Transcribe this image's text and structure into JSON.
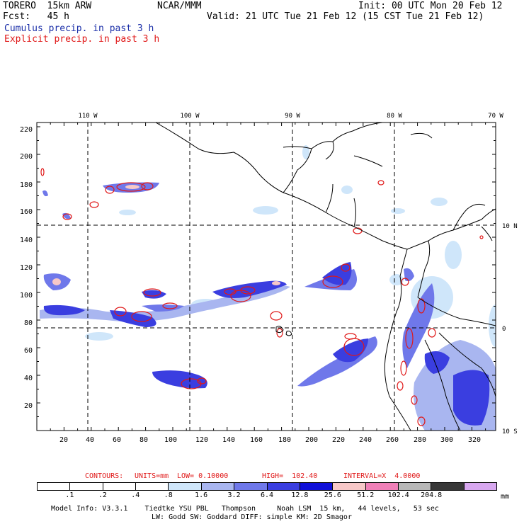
{
  "header": {
    "model": "TORERO  15km ARW",
    "center": "NCAR/MMM",
    "init": "Init: 00 UTC Mon 20 Feb 12",
    "fcst": "Fcst:   45 h",
    "valid": "Valid: 21 UTC Tue 21 Feb 12 (15 CST Tue 21 Feb 12)",
    "legend_cumulus": "Cumulus precip. in past 3 h",
    "legend_explicit": "Explicit precip. in past 3 h"
  },
  "axes": {
    "top_lon_labels": [
      "110 W",
      "100 W",
      "90 W",
      "80 W",
      "70 W"
    ],
    "right_lat_labels": [
      "10 N",
      "0",
      "10 S"
    ],
    "y_ticks": [
      "220",
      "200",
      "180",
      "160",
      "140",
      "120",
      "100",
      "80",
      "60",
      "40",
      "20"
    ],
    "x_ticks": [
      "20",
      "40",
      "60",
      "80",
      "100",
      "120",
      "140",
      "160",
      "180",
      "200",
      "220",
      "240",
      "260",
      "280",
      "300",
      "320"
    ]
  },
  "contours": {
    "label": "CONTOURS:",
    "units": "UNITS=mm",
    "low": "LOW= 0.10000",
    "high": "HIGH=  102.40",
    "interval": "INTERVAL=X  4.0000"
  },
  "colorbar": {
    "colors": [
      "#ffffff",
      "#ffffff",
      "#ffffff",
      "#ffffff",
      "#cfe6fa",
      "#a9b6f0",
      "#6f78ea",
      "#3a3ee0",
      "#1010d8",
      "#f7c8c8",
      "#f080b8",
      "#b8b8b8",
      "#383838",
      "#d8a8f0"
    ],
    "labels": [
      ".1",
      ".2",
      ".4",
      ".8",
      "1.6",
      "3.2",
      "6.4",
      "12.8",
      "25.6",
      "51.2",
      "102.4",
      "204.8"
    ],
    "unit": "mm"
  },
  "footer": {
    "line1": "Model Info: V3.3.1    Tiedtke YSU PBL   Thompson     Noah LSM  15 km,   44 levels,   53 sec",
    "line2": "LW: Godd SW: Goddard DIFF: simple KM: 2D Smagor"
  }
}
